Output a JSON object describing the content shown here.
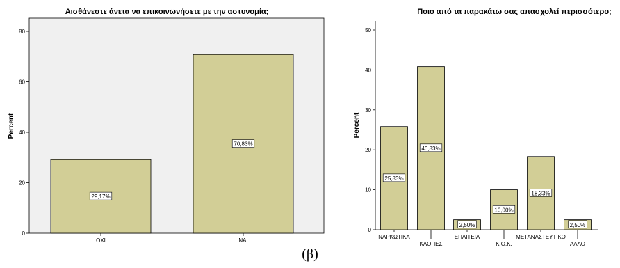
{
  "caption": "(β)",
  "colors": {
    "bar_fill": "#d2ce96",
    "bar_stroke": "#000000",
    "plot_bg": "#f0f0f0",
    "label_box": "#ffffff"
  },
  "chart_data": [
    {
      "type": "bar",
      "title": "Αισθάνεστε άνετα να επικοινωνήσετε με την αστυνομία;",
      "ylabel": "Percent",
      "xlabel": "",
      "ylim": [
        0,
        80
      ],
      "yticks": [
        0,
        20,
        40,
        60,
        80
      ],
      "categories": [
        "ΟΧΙ",
        "ΝΑΙ"
      ],
      "values": [
        29.17,
        70.83
      ],
      "data_labels": [
        "29,17%",
        "70,83%"
      ],
      "grid": false
    },
    {
      "type": "bar",
      "title": "Ποιο από τα παρακάτω σας απασχολεί περισσότερο;",
      "ylabel": "Percent",
      "xlabel": "",
      "ylim": [
        0,
        50
      ],
      "yticks": [
        0,
        10,
        20,
        30,
        40,
        50
      ],
      "categories": [
        "ΝΑΡΚΩΤΙΚΑ",
        "ΚΛΟΠΕΣ",
        "ΕΠΑΙΤΕΙΑ",
        "Κ.Ο.Κ.",
        "ΜΕΤΑΝΑΣΤΕΥΤΙΚΟ",
        "ΑΛΛΟ"
      ],
      "values": [
        25.83,
        40.83,
        2.5,
        10.0,
        18.33,
        2.5
      ],
      "data_labels": [
        "25,83%",
        "40,83%",
        "2,50%",
        "10,00%",
        "18,33%",
        "2,50%"
      ],
      "grid": false
    }
  ]
}
